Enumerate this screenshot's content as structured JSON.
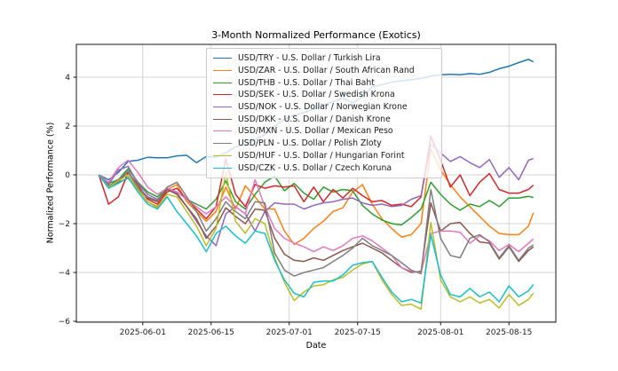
{
  "chart_data": {
    "type": "line",
    "title": "3-Month Normalized Performance (Exotics)",
    "xlabel": "Date",
    "ylabel": "Normalized Performance (%)",
    "grid": true,
    "legend_position": "upper-center-left",
    "ylim": [
      -6.05,
      5.3
    ],
    "x_range": [
      "2025-05-23",
      "2025-08-20"
    ],
    "y_tick_values": [
      4,
      2,
      0,
      -2,
      -4,
      -6
    ],
    "y_tick_labels": [
      "4",
      "2",
      "0",
      "−2",
      "−4",
      "−6"
    ],
    "x_tick_dates": [
      "2025-06-01",
      "2025-06-15",
      "2025-07-01",
      "2025-07-15",
      "2025-08-01",
      "2025-08-15"
    ],
    "x_tick_labels": [
      "2025-06-01",
      "2025-06-15",
      "2025-07-01",
      "2025-07-15",
      "2025-08-01",
      "2025-08-15"
    ],
    "dates": [
      "2025-05-23",
      "2025-05-25",
      "2025-05-27",
      "2025-05-29",
      "2025-05-31",
      "2025-06-02",
      "2025-06-04",
      "2025-06-06",
      "2025-06-08",
      "2025-06-10",
      "2025-06-12",
      "2025-06-14",
      "2025-06-16",
      "2025-06-18",
      "2025-06-20",
      "2025-06-22",
      "2025-06-24",
      "2025-06-26",
      "2025-06-28",
      "2025-06-30",
      "2025-07-02",
      "2025-07-04",
      "2025-07-06",
      "2025-07-08",
      "2025-07-10",
      "2025-07-12",
      "2025-07-14",
      "2025-07-16",
      "2025-07-18",
      "2025-07-20",
      "2025-07-22",
      "2025-07-24",
      "2025-07-26",
      "2025-07-28",
      "2025-07-30",
      "2025-08-01",
      "2025-08-03",
      "2025-08-05",
      "2025-08-07",
      "2025-08-09",
      "2025-08-11",
      "2025-08-13",
      "2025-08-15",
      "2025-08-17",
      "2025-08-19",
      "2025-08-20"
    ],
    "series": [
      {
        "name": "USD/TRY - U.S. Dollar / Turkish Lira",
        "color": "#1f77b4",
        "values": [
          0,
          -0.2,
          0.1,
          0.55,
          0.6,
          0.72,
          0.7,
          0.7,
          0.78,
          0.8,
          0.5,
          0.75,
          0.72,
          0.9,
          1.15,
          1.25,
          1.45,
          1.65,
          2.0,
          2.28,
          2.45,
          2.55,
          2.7,
          2.85,
          3.0,
          3.15,
          2.95,
          3.2,
          3.6,
          3.7,
          3.8,
          3.85,
          3.9,
          3.95,
          4.05,
          4.1,
          4.12,
          4.1,
          4.15,
          4.12,
          4.2,
          4.35,
          4.45,
          4.6,
          4.73,
          4.63
        ]
      },
      {
        "name": "USD/ZAR - U.S. Dollar / South African Rand",
        "color": "#ff7f0e",
        "values": [
          0,
          -0.5,
          -0.3,
          -0.15,
          -0.6,
          -1.1,
          -1.3,
          -0.6,
          -0.4,
          -1.1,
          -1.5,
          -1.9,
          -1.5,
          -0.5,
          -1.4,
          -0.45,
          -0.9,
          -1.4,
          -1.4,
          -2.3,
          -2.85,
          -2.6,
          -2.2,
          -1.9,
          -1.5,
          -1.35,
          -0.7,
          -0.4,
          -1.2,
          -1.8,
          -2.2,
          -2.55,
          -2.45,
          -2.0,
          1.05,
          0.2,
          -0.4,
          -0.9,
          -1.3,
          -1.7,
          -2.1,
          -2.4,
          -2.45,
          -2.45,
          -2.1,
          -1.55
        ]
      },
      {
        "name": "USD/THB - U.S. Dollar / Thai Baht",
        "color": "#2ca02c",
        "values": [
          0,
          -0.35,
          -0.2,
          0.25,
          -0.3,
          -0.7,
          -0.9,
          -0.55,
          -0.7,
          -1.0,
          -1.2,
          -1.4,
          -1.0,
          -0.25,
          -1.1,
          -1.4,
          -0.8,
          -0.3,
          -0.05,
          -0.65,
          -0.35,
          -0.75,
          -1.0,
          -0.5,
          -0.7,
          -0.6,
          -0.65,
          -1.25,
          -1.6,
          -1.85,
          -2.0,
          -2.05,
          -1.75,
          -1.4,
          -0.3,
          -0.8,
          -1.2,
          -1.45,
          -1.2,
          -1.3,
          -1.05,
          -1.3,
          -0.95,
          -0.95,
          -0.88,
          -0.93
        ]
      },
      {
        "name": "USD/SEK - U.S. Dollar / Swedish Krona",
        "color": "#d62728",
        "values": [
          0,
          -1.2,
          -0.9,
          0.1,
          -0.4,
          -1.0,
          -1.2,
          -0.7,
          -0.55,
          -1.0,
          -1.4,
          -1.8,
          -1.3,
          0.65,
          -0.8,
          -1.3,
          -0.4,
          -0.55,
          -0.45,
          -0.5,
          -0.45,
          -1.1,
          -0.5,
          -1.1,
          -0.6,
          -0.95,
          -0.55,
          -0.85,
          -1.1,
          -1.05,
          -1.25,
          -1.2,
          -1.3,
          -0.9,
          1.58,
          0.6,
          -0.5,
          0.0,
          -0.85,
          -0.3,
          0.05,
          -0.6,
          -0.75,
          -0.75,
          -0.6,
          -0.42
        ]
      },
      {
        "name": "USD/NOK - U.S. Dollar / Norwegian Krone",
        "color": "#9467bd",
        "values": [
          0,
          -0.4,
          0.2,
          0.35,
          -0.35,
          -0.8,
          -1.0,
          -0.6,
          -0.75,
          -1.3,
          -1.9,
          -2.5,
          -2.9,
          -1.6,
          -1.3,
          -1.6,
          -2.3,
          -1.5,
          -1.15,
          -1.2,
          -1.2,
          -1.4,
          -1.25,
          -1.15,
          -1.1,
          -1.0,
          -0.95,
          -1.15,
          -1.25,
          -1.2,
          -1.3,
          -1.25,
          -1.0,
          -0.85,
          1.25,
          0.9,
          0.55,
          0.75,
          0.5,
          0.3,
          0.63,
          -0.1,
          0.3,
          -0.2,
          0.6,
          0.67
        ]
      },
      {
        "name": "USD/DKK - U.S. Dollar / Danish Krone",
        "color": "#8c564b",
        "values": [
          0,
          -0.45,
          -0.3,
          0.15,
          -0.55,
          -0.95,
          -1.1,
          -0.6,
          -0.8,
          -1.3,
          -1.8,
          -2.6,
          -2.1,
          -1.35,
          -1.7,
          -2.0,
          -1.4,
          -1.45,
          -2.6,
          -3.25,
          -3.5,
          -3.55,
          -3.4,
          -3.5,
          -3.3,
          -3.1,
          -2.95,
          -2.8,
          -3.0,
          -3.2,
          -3.5,
          -3.8,
          -4.0,
          -3.95,
          -1.15,
          -2.3,
          -2.0,
          -1.95,
          -2.4,
          -2.75,
          -2.8,
          -3.45,
          -2.95,
          -3.55,
          -3.1,
          -2.95
        ]
      },
      {
        "name": "USD/MXN - U.S. Dollar / Mexican Peso",
        "color": "#e377c2",
        "values": [
          0,
          -0.3,
          0.3,
          0.6,
          0.1,
          -0.5,
          -0.8,
          -0.55,
          -0.7,
          -1.0,
          -1.3,
          -1.6,
          -1.3,
          -0.9,
          -1.3,
          -1.6,
          -0.2,
          -1.3,
          -2.2,
          -2.6,
          -2.8,
          -2.95,
          -3.15,
          -2.95,
          -3.1,
          -2.9,
          -2.6,
          -2.5,
          -2.7,
          -3.0,
          -3.3,
          -3.8,
          -3.95,
          -4.0,
          -2.4,
          -2.3,
          -2.3,
          -2.35,
          -2.8,
          -2.5,
          -2.7,
          -3.1,
          -2.85,
          -3.15,
          -2.8,
          -2.63
        ]
      },
      {
        "name": "USD/PLN - U.S. Dollar / Polish Zloty",
        "color": "#7f7f7f",
        "values": [
          0,
          -0.45,
          -0.2,
          0.15,
          -0.5,
          -0.9,
          -1.05,
          -0.5,
          -0.3,
          -0.9,
          -1.5,
          -2.3,
          -1.8,
          -1.1,
          -1.5,
          -1.8,
          -1.1,
          -1.15,
          -3.2,
          -3.9,
          -4.15,
          -4.0,
          -3.9,
          -3.8,
          -3.55,
          -3.3,
          -3.0,
          -2.6,
          -2.9,
          -3.1,
          -3.3,
          -3.6,
          -3.9,
          -4.05,
          -0.6,
          -2.6,
          -3.3,
          -3.4,
          -2.6,
          -2.45,
          -2.75,
          -3.4,
          -2.9,
          -3.5,
          -3.0,
          -2.87
        ]
      },
      {
        "name": "USD/HUF - U.S. Dollar / Hungarian Forint",
        "color": "#bcbd22",
        "values": [
          0,
          -0.5,
          -0.25,
          0.0,
          -0.6,
          -1.1,
          -1.35,
          -0.8,
          -0.9,
          -1.5,
          -2.1,
          -2.9,
          -2.2,
          0.1,
          -1.9,
          -2.4,
          -1.8,
          -2.0,
          -3.4,
          -4.4,
          -5.15,
          -4.8,
          -4.55,
          -4.5,
          -4.3,
          -4.2,
          -3.9,
          -3.65,
          -3.55,
          -4.3,
          -4.9,
          -5.35,
          -5.3,
          -5.5,
          -1.95,
          -4.3,
          -5.0,
          -5.2,
          -5.0,
          -5.25,
          -5.1,
          -5.45,
          -4.9,
          -5.35,
          -5.1,
          -4.85
        ]
      },
      {
        "name": "USD/CZK - U.S. Dollar / Czech Koruna",
        "color": "#17becf",
        "values": [
          0,
          -0.55,
          -0.35,
          -0.1,
          -0.7,
          -1.2,
          -1.4,
          -0.9,
          -1.5,
          -2.0,
          -2.5,
          -3.15,
          -2.4,
          -2.1,
          -2.5,
          -2.8,
          -2.3,
          -2.4,
          -3.5,
          -4.3,
          -4.85,
          -5.0,
          -4.4,
          -4.35,
          -4.35,
          -4.1,
          -3.7,
          -3.6,
          -3.55,
          -4.2,
          -4.8,
          -5.2,
          -5.1,
          -5.25,
          -2.45,
          -4.1,
          -4.9,
          -5.0,
          -4.65,
          -5.0,
          -4.8,
          -5.2,
          -4.55,
          -5.0,
          -4.75,
          -4.49
        ]
      }
    ]
  }
}
